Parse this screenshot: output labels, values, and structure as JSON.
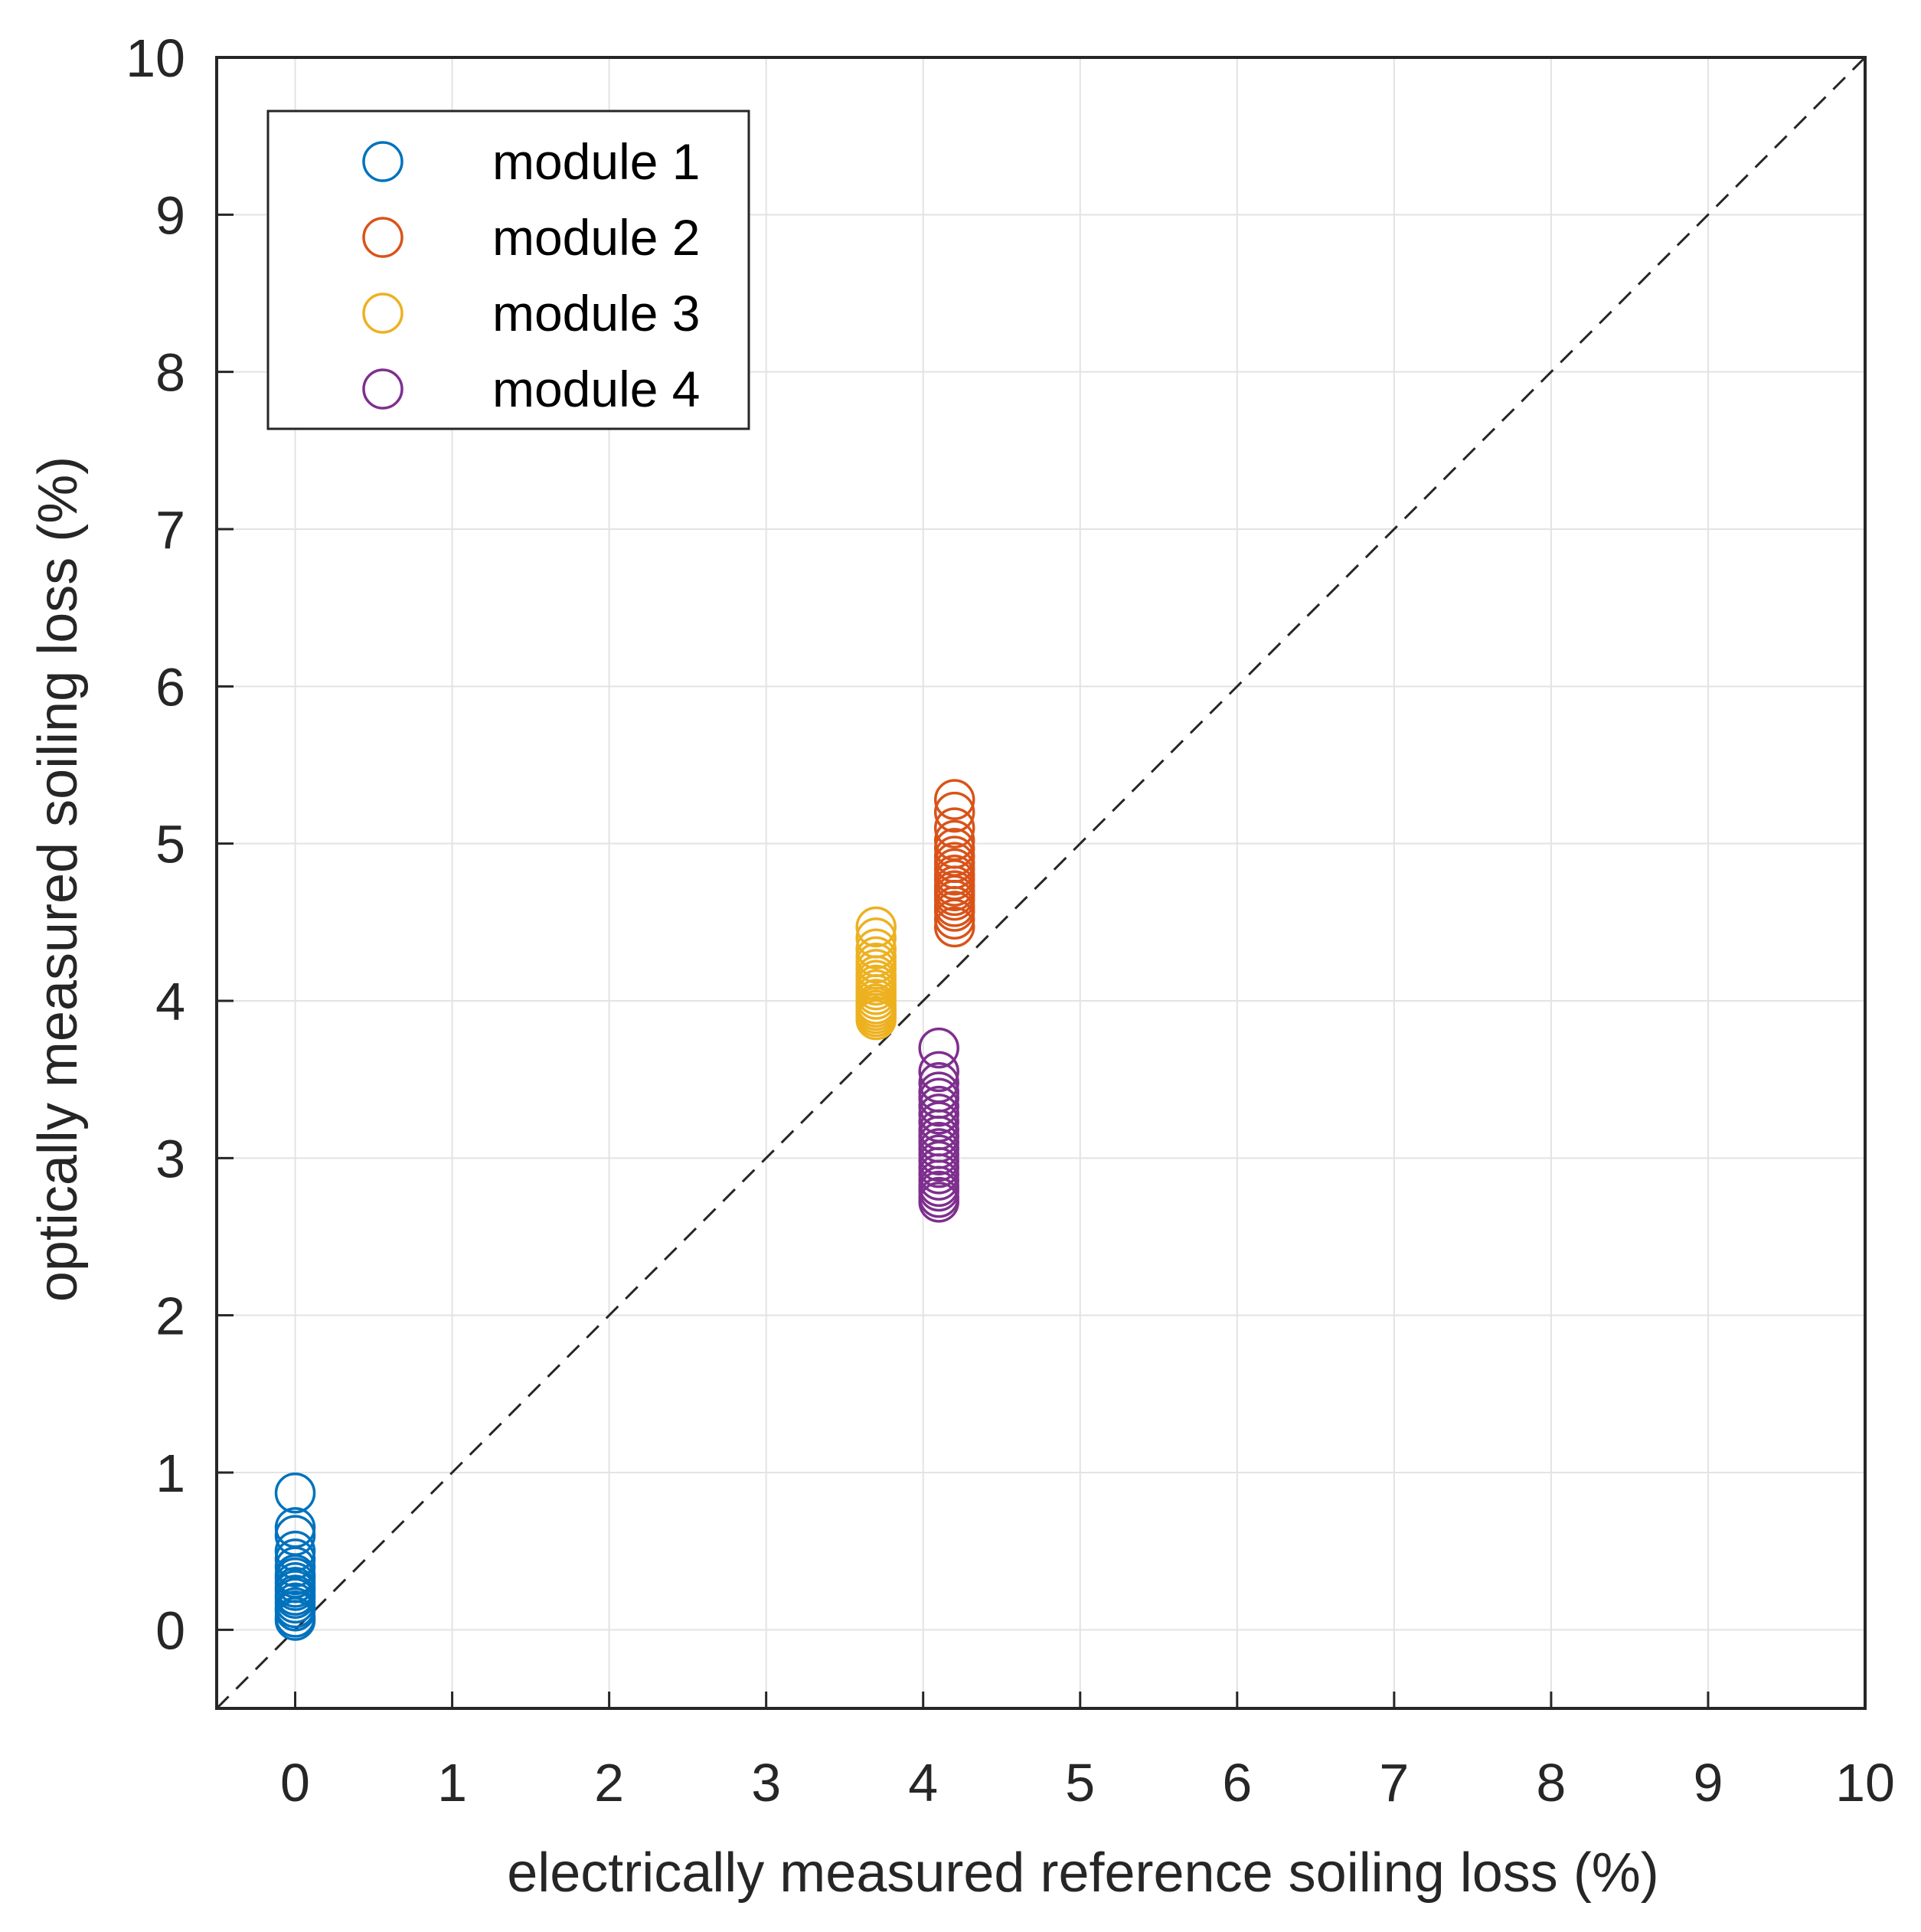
{
  "chart_data": {
    "type": "scatter",
    "title": "",
    "xlabel": "electrically measured reference soiling loss (%)",
    "ylabel": "optically measured soiling loss (%)",
    "xlim": [
      -0.5,
      10
    ],
    "ylim": [
      -0.5,
      10
    ],
    "xticks": [
      0,
      1,
      2,
      3,
      4,
      5,
      6,
      7,
      8,
      9,
      10
    ],
    "yticks": [
      0,
      1,
      2,
      3,
      4,
      5,
      6,
      7,
      8,
      9,
      10
    ],
    "grid": true,
    "legend_position": "top-left",
    "reference_line": {
      "style": "dashed",
      "color": "#000000",
      "x": [
        -0.5,
        10
      ],
      "y": [
        -0.5,
        10
      ]
    },
    "series": [
      {
        "name": "module 1",
        "color": "#0072BD",
        "x": [
          0,
          0,
          0,
          0,
          0,
          0,
          0,
          0,
          0,
          0,
          0,
          0,
          0,
          0,
          0,
          0,
          0,
          0
        ],
        "y": [
          0.87,
          0.65,
          0.6,
          0.5,
          0.45,
          0.4,
          0.35,
          0.33,
          0.3,
          0.27,
          0.25,
          0.22,
          0.2,
          0.17,
          0.14,
          0.12,
          0.08,
          0.06
        ]
      },
      {
        "name": "module 2",
        "color": "#D95319",
        "x": [
          4.2,
          4.2,
          4.2,
          4.2,
          4.2,
          4.2,
          4.2,
          4.2,
          4.2,
          4.2,
          4.2,
          4.2,
          4.2,
          4.2,
          4.2,
          4.2,
          4.2,
          4.2
        ],
        "y": [
          5.28,
          5.2,
          5.1,
          5.02,
          4.97,
          4.92,
          4.88,
          4.84,
          4.8,
          4.77,
          4.73,
          4.7,
          4.67,
          4.64,
          4.6,
          4.57,
          4.52,
          4.47
        ]
      },
      {
        "name": "module 3",
        "color": "#EDB120",
        "x": [
          3.7,
          3.7,
          3.7,
          3.7,
          3.7,
          3.7,
          3.7,
          3.7,
          3.7,
          3.7,
          3.7,
          3.7,
          3.7,
          3.7,
          3.7,
          3.7,
          3.7,
          3.7
        ],
        "y": [
          4.47,
          4.4,
          4.33,
          4.28,
          4.24,
          4.2,
          4.16,
          4.13,
          4.1,
          4.07,
          4.04,
          4.01,
          3.98,
          3.96,
          3.94,
          3.92,
          3.9,
          3.88
        ]
      },
      {
        "name": "module 4",
        "color": "#7E2F8E",
        "x": [
          4.1,
          4.1,
          4.1,
          4.1,
          4.1,
          4.1,
          4.1,
          4.1,
          4.1,
          4.1,
          4.1,
          4.1,
          4.1,
          4.1,
          4.1,
          4.1,
          4.1,
          4.1,
          4.1,
          4.1,
          4.1
        ],
        "y": [
          3.7,
          3.55,
          3.48,
          3.42,
          3.38,
          3.33,
          3.28,
          3.23,
          3.18,
          3.14,
          3.1,
          3.06,
          3.02,
          2.98,
          2.94,
          2.9,
          2.86,
          2.82,
          2.79,
          2.75,
          2.72
        ]
      }
    ]
  }
}
